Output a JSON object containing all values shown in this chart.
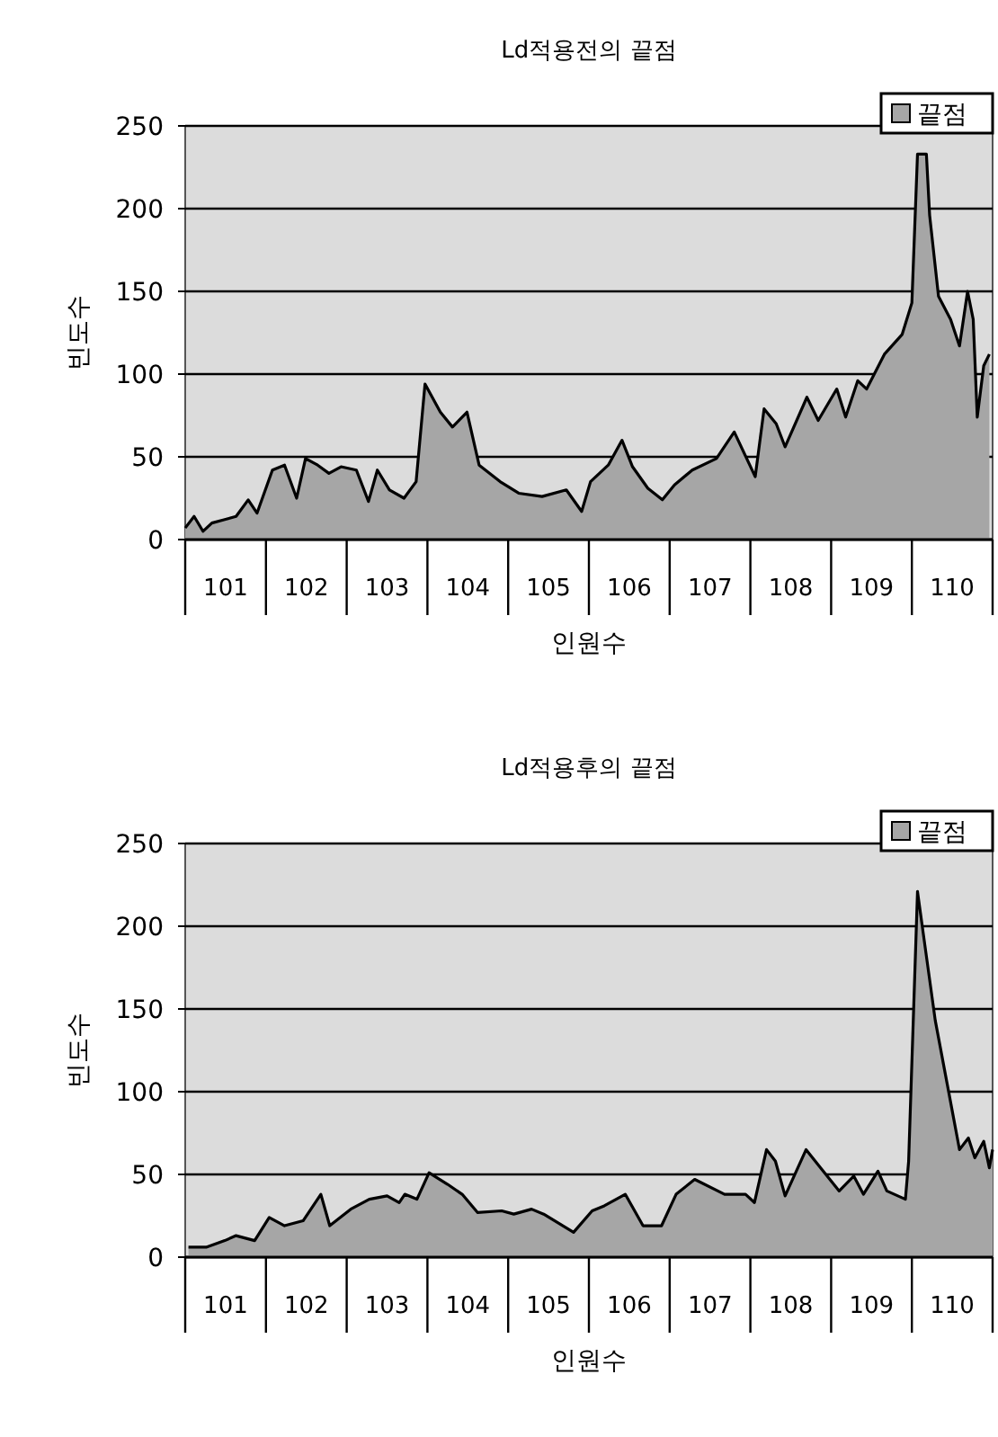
{
  "chart_data": [
    {
      "type": "area",
      "title": "Ld적용전의 끝점",
      "xlabel": "인원수",
      "ylabel": "빈도수",
      "legend": "top right",
      "grid": "y",
      "xlim": [
        100.5,
        110.5
      ],
      "ylim": [
        0,
        250
      ],
      "yticks": [
        0,
        50,
        100,
        150,
        200,
        250
      ],
      "xticks": [
        {
          "value": 100.5,
          "label": null
        },
        101,
        {
          "value": 101.5,
          "label": null
        },
        102,
        {
          "value": 102.5,
          "label": null
        },
        103,
        {
          "value": 103.5,
          "label": null
        },
        104,
        {
          "value": 104.5,
          "label": null
        },
        105,
        {
          "value": 105.5,
          "label": null
        },
        106,
        {
          "value": 106.5,
          "label": null
        },
        107,
        {
          "value": 107.5,
          "label": null
        },
        108,
        {
          "value": 108.5,
          "label": null
        },
        109,
        {
          "value": 109.5,
          "label": null
        },
        110,
        {
          "value": 110.5,
          "label": null
        }
      ],
      "x": [
        100.5,
        100.61,
        100.72,
        100.83,
        100.98,
        101.13,
        101.28,
        101.39,
        101.58,
        101.73,
        101.88,
        101.99,
        102.14,
        102.28,
        102.43,
        102.62,
        102.77,
        102.88,
        103.03,
        103.21,
        103.36,
        103.47,
        103.66,
        103.81,
        103.99,
        104.14,
        104.4,
        104.63,
        104.92,
        105.22,
        105.41,
        105.52,
        105.74,
        105.91,
        106.04,
        106.23,
        106.41,
        106.56,
        106.78,
        107.08,
        107.3,
        107.56,
        107.67,
        107.82,
        107.93,
        108.2,
        108.34,
        108.57,
        108.68,
        108.83,
        108.94,
        109.16,
        109.38,
        109.5,
        109.57,
        109.68,
        109.72,
        109.83,
        109.98,
        110.09,
        110.19,
        110.26,
        110.31,
        110.39,
        110.46
      ],
      "series": [
        {
          "name": "끝점",
          "color": "#a6a6a6",
          "values": [
            7,
            14,
            5,
            10,
            12,
            14,
            24,
            16,
            42,
            45,
            25,
            49,
            45,
            40,
            44,
            42,
            23,
            42,
            30,
            25,
            35,
            94,
            77,
            68,
            77,
            45,
            35,
            28,
            26,
            30,
            17,
            35,
            45,
            60,
            44,
            31,
            24,
            33,
            42,
            49,
            65,
            38,
            79,
            70,
            56,
            86,
            72,
            91,
            74,
            96,
            91,
            112,
            124,
            143,
            233,
            233,
            196,
            147,
            133,
            117,
            150,
            133,
            74,
            105,
            112
          ]
        }
      ]
    },
    {
      "type": "area",
      "title": "Ld적용후의 끝점",
      "xlabel": "인원수",
      "ylabel": "빈도수",
      "legend": "top right",
      "grid": "y",
      "xlim": [
        100.5,
        110.5
      ],
      "ylim": [
        0,
        250
      ],
      "yticks": [
        0,
        50,
        100,
        150,
        200,
        250
      ],
      "xticks": [
        {
          "value": 100.5,
          "label": null
        },
        101,
        {
          "value": 101.5,
          "label": null
        },
        102,
        {
          "value": 102.5,
          "label": null
        },
        103,
        {
          "value": 103.5,
          "label": null
        },
        104,
        {
          "value": 104.5,
          "label": null
        },
        105,
        {
          "value": 105.5,
          "label": null
        },
        106,
        {
          "value": 106.5,
          "label": null
        },
        107,
        {
          "value": 107.5,
          "label": null
        },
        108,
        {
          "value": 108.5,
          "label": null
        },
        109,
        {
          "value": 109.5,
          "label": null
        },
        110,
        {
          "value": 110.5,
          "label": null
        }
      ],
      "x": [
        100.54,
        100.76,
        100.99,
        101.13,
        101.36,
        101.54,
        101.73,
        101.96,
        102.18,
        102.29,
        102.55,
        102.78,
        103.0,
        103.15,
        103.22,
        103.37,
        103.52,
        103.75,
        103.93,
        104.12,
        104.42,
        104.57,
        104.79,
        104.94,
        105.31,
        105.54,
        105.69,
        105.95,
        106.17,
        106.4,
        106.58,
        106.81,
        107.18,
        107.44,
        107.55,
        107.7,
        107.81,
        107.93,
        108.19,
        108.37,
        108.6,
        108.78,
        108.9,
        109.08,
        109.19,
        109.42,
        109.46,
        109.57,
        109.64,
        109.79,
        109.94,
        110.09,
        110.2,
        110.28,
        110.39,
        110.46,
        110.5
      ],
      "series": [
        {
          "name": "끝점",
          "color": "#a6a6a6",
          "values": [
            6,
            6,
            10,
            13,
            10,
            24,
            19,
            22,
            38,
            19,
            29,
            35,
            37,
            33,
            38,
            35,
            51,
            44,
            38,
            27,
            28,
            26,
            29,
            26,
            15,
            28,
            31,
            38,
            19,
            19,
            38,
            47,
            38,
            38,
            33,
            65,
            58,
            37,
            65,
            54,
            40,
            49,
            38,
            52,
            40,
            35,
            58,
            221,
            196,
            143,
            104,
            65,
            72,
            60,
            70,
            54,
            65
          ]
        }
      ]
    }
  ]
}
